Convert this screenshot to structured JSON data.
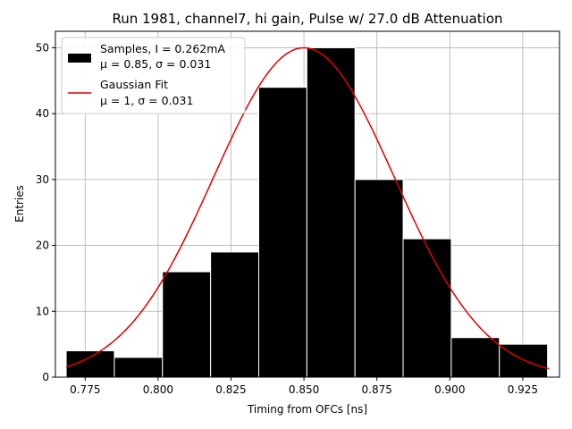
{
  "chart_data": {
    "type": "bar",
    "title": "Run 1981, channel7, hi gain, Pulse w/ 27.0 dB Attenuation",
    "xlabel": "Timing from OFCs [ns]",
    "ylabel": "Entries",
    "xlim": [
      0.7648,
      0.9376
    ],
    "ylim": [
      0,
      52.5
    ],
    "xticks": [
      0.775,
      0.8,
      0.825,
      0.85,
      0.875,
      0.9,
      0.925
    ],
    "xtick_labels": [
      "0.775",
      "0.800",
      "0.825",
      "0.850",
      "0.875",
      "0.900",
      "0.925"
    ],
    "yticks": [
      0,
      10,
      20,
      30,
      40,
      50
    ],
    "ytick_labels": [
      "0",
      "10",
      "20",
      "30",
      "40",
      "50"
    ],
    "grid": true,
    "legend_position": "top-left",
    "histogram": {
      "bin_edges": [
        0.7685,
        0.785,
        0.8015,
        0.818,
        0.8345,
        0.851,
        0.8675,
        0.884,
        0.9005,
        0.917,
        0.9335
      ],
      "values": [
        4,
        3,
        16,
        19,
        44,
        50,
        30,
        21,
        6,
        5
      ],
      "color": "#000000",
      "edge_color": "#ffffff"
    },
    "fit": {
      "type": "gaussian",
      "amplitude": 50,
      "mu": 0.85,
      "sigma": 0.031,
      "x_range": [
        0.7685,
        0.934
      ],
      "color": "#e00000"
    },
    "legend": [
      {
        "kind": "patch",
        "color": "#000000",
        "line1": "Samples, I = 0.262mA",
        "line2": "μ = 0.85, σ = 0.031"
      },
      {
        "kind": "line",
        "color": "#e00000",
        "line1": "Gaussian Fit",
        "line2": "μ = 1, σ = 0.031"
      }
    ]
  }
}
